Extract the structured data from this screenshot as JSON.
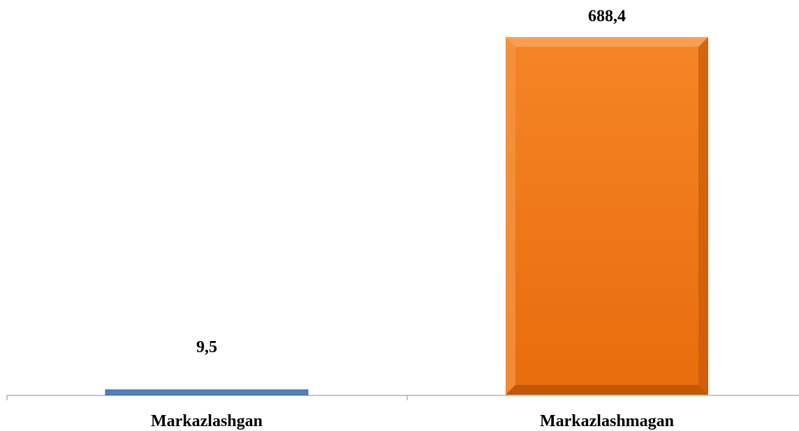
{
  "chart_data": {
    "type": "bar",
    "categories": [
      "Markazlashgan",
      "Markazlashmagan"
    ],
    "values": [
      9.5,
      688.4
    ],
    "value_labels": [
      "9,5",
      "688,4"
    ],
    "colors": [
      "#4f81bd",
      "#f07512"
    ],
    "ylim": [
      0,
      700
    ],
    "grid": false,
    "legend": "none",
    "title": "",
    "xlabel": "",
    "ylabel": ""
  }
}
